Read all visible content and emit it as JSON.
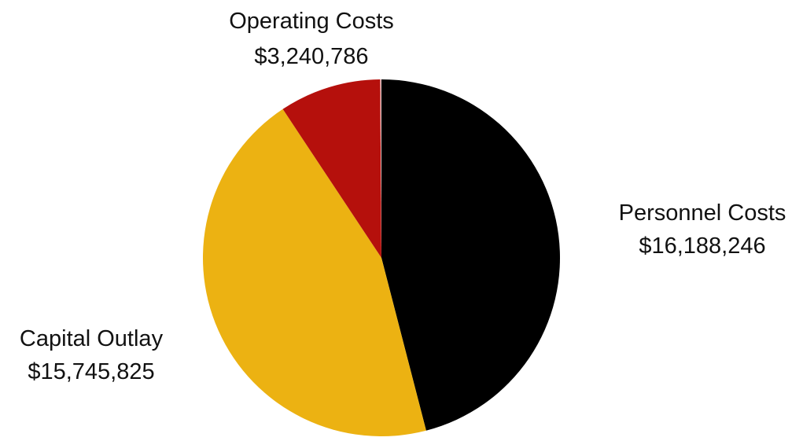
{
  "chart_data": {
    "type": "pie",
    "slices": [
      {
        "label": "Personnel Costs",
        "value": 16188246,
        "value_text": "$16,188,246",
        "color": "#000000"
      },
      {
        "label": "Capital Outlay",
        "value": 15745825,
        "value_text": "$15,745,825",
        "color": "#ecb212"
      },
      {
        "label": "Operating Costs",
        "value": 3240786,
        "value_text": "$3,240,786",
        "color": "#b5100c"
      },
      {
        "label": "",
        "value": 40000,
        "value_text": "",
        "color": "#e8c4c4"
      }
    ],
    "start": "12 o'clock",
    "direction": "clockwise",
    "legend": "none"
  }
}
